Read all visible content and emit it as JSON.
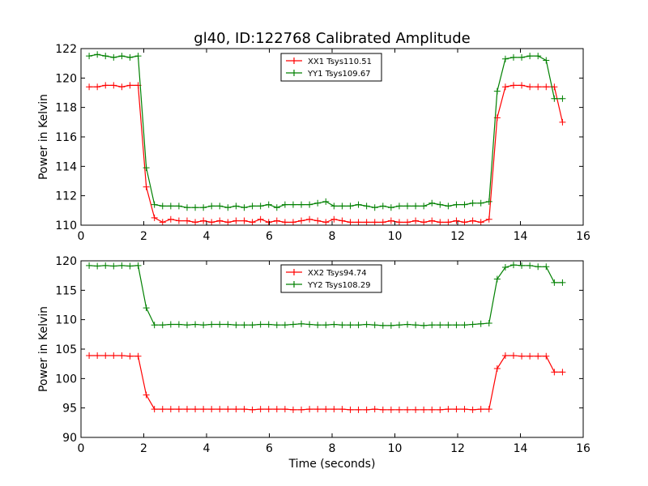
{
  "figure": {
    "title": "gl40, ID:122768 Calibrated Amplitude"
  },
  "chart_data": [
    {
      "type": "line",
      "xlabel": "",
      "ylabel": "Power in Kelvin",
      "xlim": [
        0,
        16
      ],
      "ylim": [
        110,
        122
      ],
      "xticks": [
        0,
        2,
        4,
        6,
        8,
        10,
        12,
        14,
        16
      ],
      "yticks": [
        110,
        112,
        114,
        116,
        118,
        120,
        122
      ],
      "legend_position": "top-center",
      "grid": false,
      "x": [
        0.26,
        0.52,
        0.78,
        1.04,
        1.3,
        1.56,
        1.82,
        2.08,
        2.34,
        2.6,
        2.86,
        3.12,
        3.38,
        3.64,
        3.9,
        4.16,
        4.42,
        4.68,
        4.94,
        5.2,
        5.46,
        5.72,
        5.98,
        6.24,
        6.5,
        6.76,
        7.02,
        7.28,
        7.54,
        7.8,
        8.06,
        8.32,
        8.58,
        8.84,
        9.1,
        9.36,
        9.62,
        9.88,
        10.14,
        10.4,
        10.66,
        10.92,
        11.18,
        11.44,
        11.7,
        11.96,
        12.22,
        12.48,
        12.74,
        13.0,
        13.26,
        13.52,
        13.78,
        14.04,
        14.3,
        14.56,
        14.82,
        15.08,
        15.34
      ],
      "series": [
        {
          "name": "XX1 Tsys110.51",
          "color": "#ff0000",
          "values": [
            119.4,
            119.4,
            119.5,
            119.5,
            119.4,
            119.5,
            119.5,
            112.6,
            110.5,
            110.2,
            110.4,
            110.3,
            110.3,
            110.2,
            110.3,
            110.2,
            110.3,
            110.2,
            110.3,
            110.3,
            110.2,
            110.4,
            110.2,
            110.3,
            110.2,
            110.2,
            110.3,
            110.4,
            110.3,
            110.2,
            110.4,
            110.3,
            110.2,
            110.2,
            110.2,
            110.2,
            110.2,
            110.3,
            110.2,
            110.2,
            110.3,
            110.2,
            110.3,
            110.2,
            110.2,
            110.3,
            110.2,
            110.3,
            110.2,
            110.4,
            117.3,
            119.4,
            119.5,
            119.5,
            119.4,
            119.4,
            119.4,
            119.4,
            117.0
          ]
        },
        {
          "name": "YY1 Tsys109.67",
          "color": "#008000",
          "values": [
            121.5,
            121.6,
            121.5,
            121.4,
            121.5,
            121.4,
            121.5,
            113.9,
            111.4,
            111.3,
            111.3,
            111.3,
            111.2,
            111.2,
            111.2,
            111.3,
            111.3,
            111.2,
            111.3,
            111.2,
            111.3,
            111.3,
            111.4,
            111.2,
            111.4,
            111.4,
            111.4,
            111.4,
            111.5,
            111.6,
            111.3,
            111.3,
            111.3,
            111.4,
            111.3,
            111.2,
            111.3,
            111.2,
            111.3,
            111.3,
            111.3,
            111.3,
            111.5,
            111.4,
            111.3,
            111.4,
            111.4,
            111.5,
            111.5,
            111.6,
            119.1,
            121.3,
            121.4,
            121.4,
            121.5,
            121.5,
            121.2,
            118.6,
            118.6
          ]
        }
      ]
    },
    {
      "type": "line",
      "xlabel": "Time (seconds)",
      "ylabel": "Power in Kelvin",
      "xlim": [
        0,
        16
      ],
      "ylim": [
        90,
        120
      ],
      "xticks": [
        0,
        2,
        4,
        6,
        8,
        10,
        12,
        14,
        16
      ],
      "yticks": [
        90,
        95,
        100,
        105,
        110,
        115,
        120
      ],
      "legend_position": "top-center",
      "grid": false,
      "x": [
        0.26,
        0.52,
        0.78,
        1.04,
        1.3,
        1.56,
        1.82,
        2.08,
        2.34,
        2.6,
        2.86,
        3.12,
        3.38,
        3.64,
        3.9,
        4.16,
        4.42,
        4.68,
        4.94,
        5.2,
        5.46,
        5.72,
        5.98,
        6.24,
        6.5,
        6.76,
        7.02,
        7.28,
        7.54,
        7.8,
        8.06,
        8.32,
        8.58,
        8.84,
        9.1,
        9.36,
        9.62,
        9.88,
        10.14,
        10.4,
        10.66,
        10.92,
        11.18,
        11.44,
        11.7,
        11.96,
        12.22,
        12.48,
        12.74,
        13.0,
        13.26,
        13.52,
        13.78,
        14.04,
        14.3,
        14.56,
        14.82,
        15.08,
        15.34
      ],
      "series": [
        {
          "name": "XX2 Tsys94.74",
          "color": "#ff0000",
          "values": [
            103.9,
            103.9,
            103.9,
            103.9,
            103.9,
            103.8,
            103.8,
            97.2,
            94.8,
            94.8,
            94.8,
            94.8,
            94.8,
            94.8,
            94.8,
            94.8,
            94.8,
            94.8,
            94.8,
            94.8,
            94.7,
            94.8,
            94.8,
            94.8,
            94.8,
            94.7,
            94.7,
            94.8,
            94.8,
            94.8,
            94.8,
            94.8,
            94.7,
            94.7,
            94.7,
            94.8,
            94.7,
            94.7,
            94.7,
            94.7,
            94.7,
            94.7,
            94.7,
            94.7,
            94.8,
            94.8,
            94.8,
            94.7,
            94.8,
            94.8,
            101.7,
            103.9,
            103.9,
            103.8,
            103.8,
            103.8,
            103.8,
            101.1,
            101.1
          ]
        },
        {
          "name": "YY2 Tsys108.29",
          "color": "#008000",
          "values": [
            119.2,
            119.1,
            119.2,
            119.1,
            119.2,
            119.1,
            119.2,
            112.0,
            109.1,
            109.1,
            109.2,
            109.2,
            109.1,
            109.2,
            109.1,
            109.2,
            109.2,
            109.2,
            109.1,
            109.1,
            109.1,
            109.2,
            109.2,
            109.1,
            109.1,
            109.2,
            109.3,
            109.2,
            109.1,
            109.1,
            109.2,
            109.1,
            109.1,
            109.1,
            109.2,
            109.1,
            109.0,
            109.0,
            109.1,
            109.2,
            109.1,
            109.0,
            109.1,
            109.1,
            109.1,
            109.1,
            109.1,
            109.2,
            109.3,
            109.4,
            116.9,
            118.9,
            119.3,
            119.2,
            119.2,
            119.0,
            119.0,
            116.3,
            116.3
          ]
        }
      ]
    }
  ]
}
